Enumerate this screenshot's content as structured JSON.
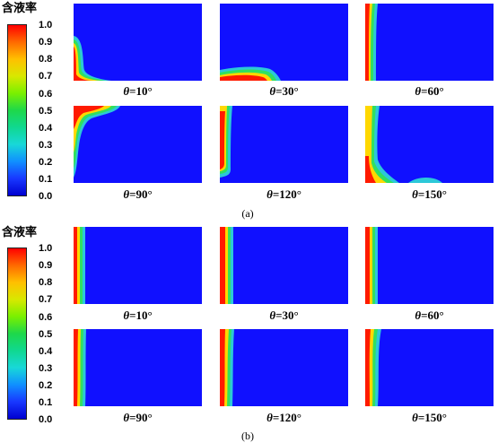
{
  "colorbar": {
    "title": "含液率",
    "ticks": [
      "1.0",
      "0.9",
      "0.8",
      "0.7",
      "0.6",
      "0.5",
      "0.4",
      "0.3",
      "0.2",
      "0.1",
      "0.0"
    ],
    "colors": [
      "#ff0000",
      "#ff6a00",
      "#ffc000",
      "#d8e800",
      "#7af000",
      "#1ed84a",
      "#10d890",
      "#18d8d8",
      "#1090ff",
      "#1838ff",
      "#0000d0"
    ]
  },
  "figure_a": {
    "sublabel": "(a)",
    "panels": [
      {
        "caption_var": "θ",
        "caption_val": "=10°"
      },
      {
        "caption_var": "θ",
        "caption_val": "=30°"
      },
      {
        "caption_var": "θ",
        "caption_val": "=60°"
      },
      {
        "caption_var": "θ",
        "caption_val": "=90°"
      },
      {
        "caption_var": "θ",
        "caption_val": "=120°"
      },
      {
        "caption_var": "θ",
        "caption_val": "=150°"
      }
    ]
  },
  "figure_b": {
    "sublabel": "(b)",
    "panels": [
      {
        "caption_var": "θ",
        "caption_val": "=10°"
      },
      {
        "caption_var": "θ",
        "caption_val": "=30°"
      },
      {
        "caption_var": "θ",
        "caption_val": "=60°"
      },
      {
        "caption_var": "θ",
        "caption_val": "=90°"
      },
      {
        "caption_var": "θ",
        "caption_val": "=120°"
      },
      {
        "caption_var": "θ",
        "caption_val": "=150°"
      }
    ]
  },
  "field_colors": {
    "background": "#1010ff",
    "outer": "#2cc8d8",
    "mid": "#30e060",
    "inner": "#ffd800",
    "core": "#ff1a00"
  }
}
